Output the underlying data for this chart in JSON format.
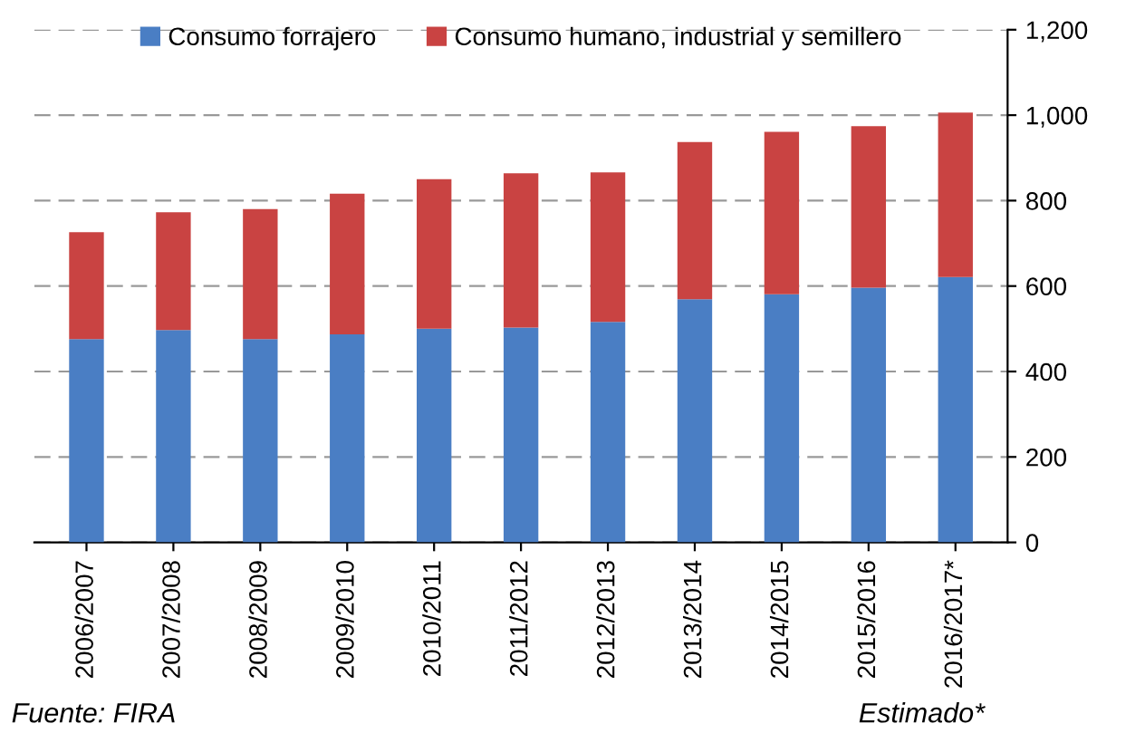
{
  "chart_data": {
    "type": "bar",
    "stacked": true,
    "categories": [
      "2006/2007",
      "2007/2008",
      "2008/2009",
      "2009/2010",
      "2010/2011",
      "2011/2012",
      "2012/2013",
      "2013/2014",
      "2014/2015",
      "2015/2016",
      "2016/2017*"
    ],
    "series": [
      {
        "name": "Consumo forrajero",
        "color": "#4a7ec4",
        "values": [
          476,
          497,
          476,
          487,
          500,
          503,
          516,
          569,
          581,
          596,
          621
        ]
      },
      {
        "name": "Consumo humano, industrial y semillero",
        "color": "#c94342",
        "values": [
          250,
          276,
          304,
          329,
          350,
          361,
          350,
          368,
          380,
          378,
          385
        ]
      }
    ],
    "ylim": [
      0,
      1200
    ],
    "yticks": [
      0,
      {
        "value": 200,
        "label": "200"
      },
      {
        "value": 400,
        "label": "400"
      },
      {
        "value": 600,
        "label": "600"
      },
      {
        "value": 800,
        "label": "800"
      },
      {
        "value": 1000,
        "label": "1,000"
      },
      {
        "value": 1200,
        "label": "1,200"
      }
    ],
    "grid": "y",
    "legend": "top",
    "annotations": [
      "Fuente: FIRA",
      "Estimado*"
    ]
  }
}
